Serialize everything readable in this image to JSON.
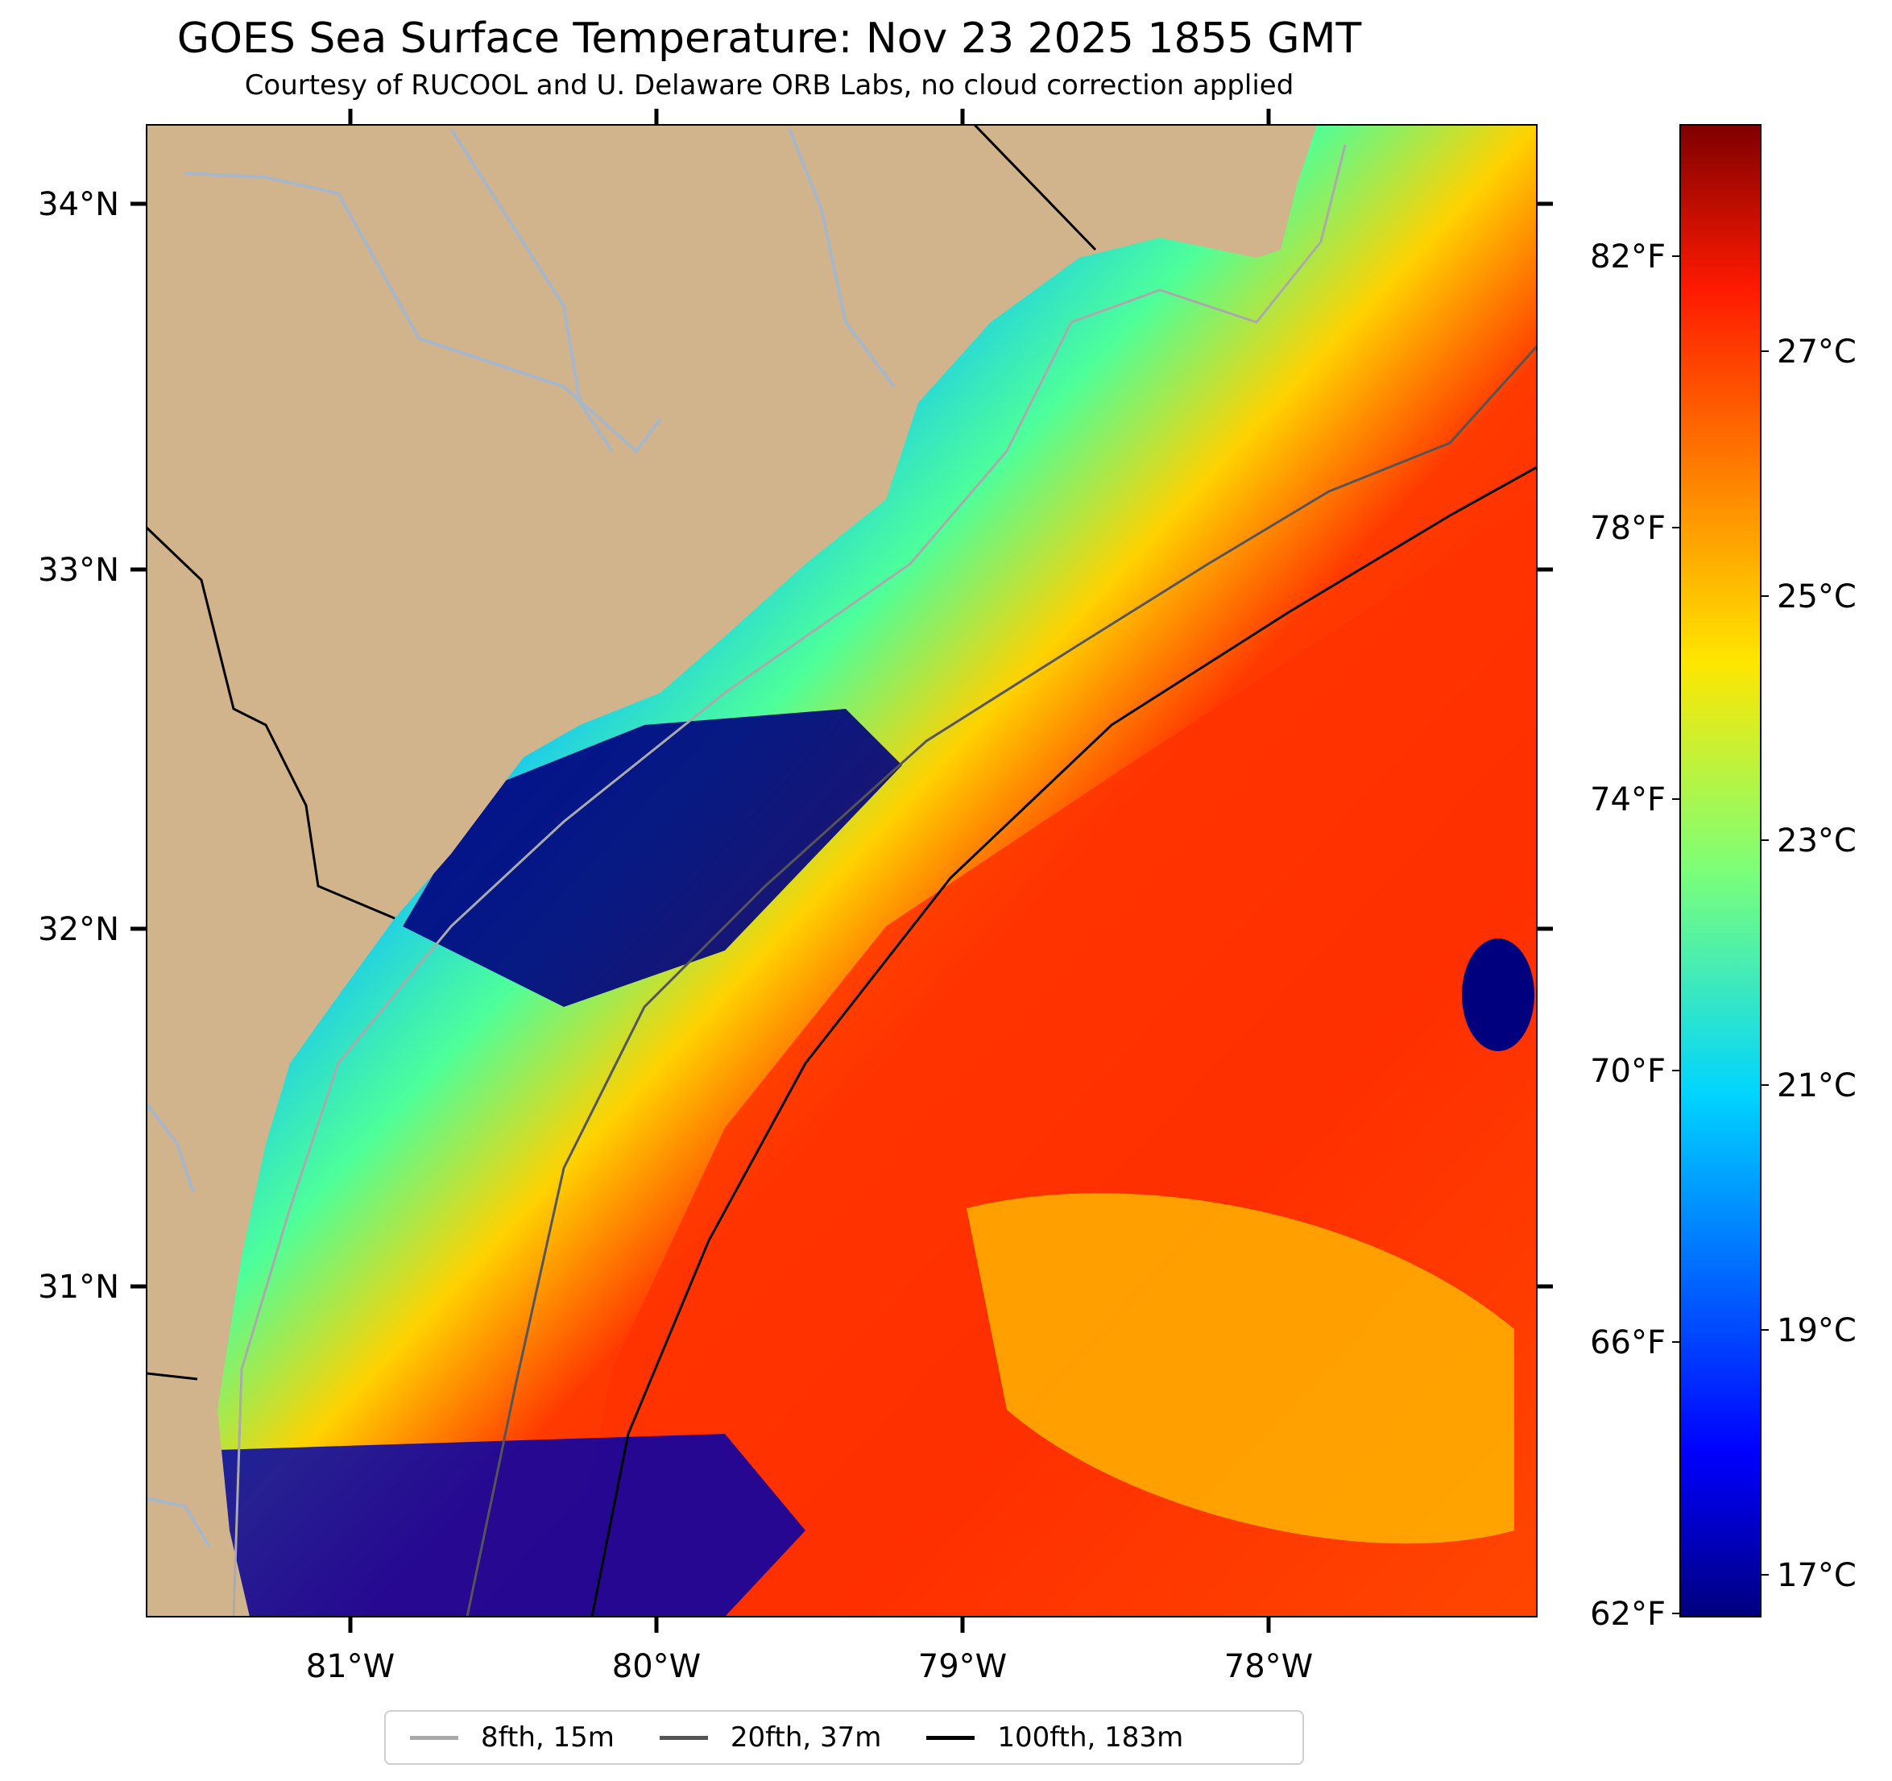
{
  "title": "GOES Sea Surface Temperature: Nov 23 2025 1855 GMT",
  "subtitle": "Courtesy of RUCOOL and U. Delaware ORB Labs, no cloud correction applied",
  "map": {
    "lon_ticks": [
      "81°W",
      "80°W",
      "79°W",
      "78°W"
    ],
    "lat_ticks": [
      "34°N",
      "33°N",
      "32°N",
      "31°N"
    ]
  },
  "colorbar": {
    "fahrenheit_ticks": [
      "82°F",
      "78°F",
      "74°F",
      "70°F",
      "66°F",
      "62°F"
    ],
    "celsius_ticks": [
      "27°C",
      "25°C",
      "23°C",
      "21°C",
      "19°C",
      "17°C"
    ]
  },
  "legend": [
    {
      "label": "8fth, 15m",
      "color": "#aaaaaa"
    },
    {
      "label": "20fth, 37m",
      "color": "#555555"
    },
    {
      "label": "100fth, 183m",
      "color": "#000000"
    }
  ],
  "colors": {
    "land": "#d2b48c",
    "river": "#a7b6c9"
  }
}
